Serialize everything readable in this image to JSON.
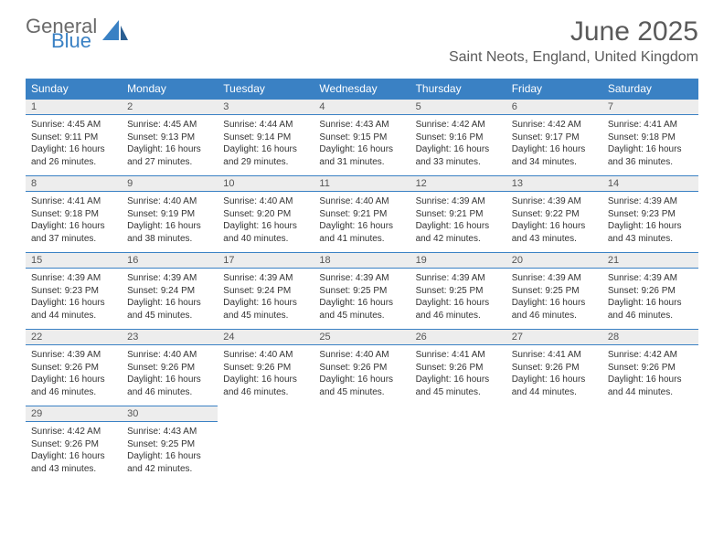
{
  "brand": {
    "word1": "General",
    "word2": "Blue"
  },
  "title": "June 2025",
  "location": "Saint Neots, England, United Kingdom",
  "colors": {
    "header_bg": "#3a81c4",
    "header_fg": "#ffffff",
    "daynum_bg": "#ededed",
    "rule": "#3a81c4",
    "text": "#333333"
  },
  "day_headers": [
    "Sunday",
    "Monday",
    "Tuesday",
    "Wednesday",
    "Thursday",
    "Friday",
    "Saturday"
  ],
  "weeks": [
    [
      {
        "n": "1",
        "sr": "Sunrise: 4:45 AM",
        "ss": "Sunset: 9:11 PM",
        "dl": "Daylight: 16 hours and 26 minutes."
      },
      {
        "n": "2",
        "sr": "Sunrise: 4:45 AM",
        "ss": "Sunset: 9:13 PM",
        "dl": "Daylight: 16 hours and 27 minutes."
      },
      {
        "n": "3",
        "sr": "Sunrise: 4:44 AM",
        "ss": "Sunset: 9:14 PM",
        "dl": "Daylight: 16 hours and 29 minutes."
      },
      {
        "n": "4",
        "sr": "Sunrise: 4:43 AM",
        "ss": "Sunset: 9:15 PM",
        "dl": "Daylight: 16 hours and 31 minutes."
      },
      {
        "n": "5",
        "sr": "Sunrise: 4:42 AM",
        "ss": "Sunset: 9:16 PM",
        "dl": "Daylight: 16 hours and 33 minutes."
      },
      {
        "n": "6",
        "sr": "Sunrise: 4:42 AM",
        "ss": "Sunset: 9:17 PM",
        "dl": "Daylight: 16 hours and 34 minutes."
      },
      {
        "n": "7",
        "sr": "Sunrise: 4:41 AM",
        "ss": "Sunset: 9:18 PM",
        "dl": "Daylight: 16 hours and 36 minutes."
      }
    ],
    [
      {
        "n": "8",
        "sr": "Sunrise: 4:41 AM",
        "ss": "Sunset: 9:18 PM",
        "dl": "Daylight: 16 hours and 37 minutes."
      },
      {
        "n": "9",
        "sr": "Sunrise: 4:40 AM",
        "ss": "Sunset: 9:19 PM",
        "dl": "Daylight: 16 hours and 38 minutes."
      },
      {
        "n": "10",
        "sr": "Sunrise: 4:40 AM",
        "ss": "Sunset: 9:20 PM",
        "dl": "Daylight: 16 hours and 40 minutes."
      },
      {
        "n": "11",
        "sr": "Sunrise: 4:40 AM",
        "ss": "Sunset: 9:21 PM",
        "dl": "Daylight: 16 hours and 41 minutes."
      },
      {
        "n": "12",
        "sr": "Sunrise: 4:39 AM",
        "ss": "Sunset: 9:21 PM",
        "dl": "Daylight: 16 hours and 42 minutes."
      },
      {
        "n": "13",
        "sr": "Sunrise: 4:39 AM",
        "ss": "Sunset: 9:22 PM",
        "dl": "Daylight: 16 hours and 43 minutes."
      },
      {
        "n": "14",
        "sr": "Sunrise: 4:39 AM",
        "ss": "Sunset: 9:23 PM",
        "dl": "Daylight: 16 hours and 43 minutes."
      }
    ],
    [
      {
        "n": "15",
        "sr": "Sunrise: 4:39 AM",
        "ss": "Sunset: 9:23 PM",
        "dl": "Daylight: 16 hours and 44 minutes."
      },
      {
        "n": "16",
        "sr": "Sunrise: 4:39 AM",
        "ss": "Sunset: 9:24 PM",
        "dl": "Daylight: 16 hours and 45 minutes."
      },
      {
        "n": "17",
        "sr": "Sunrise: 4:39 AM",
        "ss": "Sunset: 9:24 PM",
        "dl": "Daylight: 16 hours and 45 minutes."
      },
      {
        "n": "18",
        "sr": "Sunrise: 4:39 AM",
        "ss": "Sunset: 9:25 PM",
        "dl": "Daylight: 16 hours and 45 minutes."
      },
      {
        "n": "19",
        "sr": "Sunrise: 4:39 AM",
        "ss": "Sunset: 9:25 PM",
        "dl": "Daylight: 16 hours and 46 minutes."
      },
      {
        "n": "20",
        "sr": "Sunrise: 4:39 AM",
        "ss": "Sunset: 9:25 PM",
        "dl": "Daylight: 16 hours and 46 minutes."
      },
      {
        "n": "21",
        "sr": "Sunrise: 4:39 AM",
        "ss": "Sunset: 9:26 PM",
        "dl": "Daylight: 16 hours and 46 minutes."
      }
    ],
    [
      {
        "n": "22",
        "sr": "Sunrise: 4:39 AM",
        "ss": "Sunset: 9:26 PM",
        "dl": "Daylight: 16 hours and 46 minutes."
      },
      {
        "n": "23",
        "sr": "Sunrise: 4:40 AM",
        "ss": "Sunset: 9:26 PM",
        "dl": "Daylight: 16 hours and 46 minutes."
      },
      {
        "n": "24",
        "sr": "Sunrise: 4:40 AM",
        "ss": "Sunset: 9:26 PM",
        "dl": "Daylight: 16 hours and 46 minutes."
      },
      {
        "n": "25",
        "sr": "Sunrise: 4:40 AM",
        "ss": "Sunset: 9:26 PM",
        "dl": "Daylight: 16 hours and 45 minutes."
      },
      {
        "n": "26",
        "sr": "Sunrise: 4:41 AM",
        "ss": "Sunset: 9:26 PM",
        "dl": "Daylight: 16 hours and 45 minutes."
      },
      {
        "n": "27",
        "sr": "Sunrise: 4:41 AM",
        "ss": "Sunset: 9:26 PM",
        "dl": "Daylight: 16 hours and 44 minutes."
      },
      {
        "n": "28",
        "sr": "Sunrise: 4:42 AM",
        "ss": "Sunset: 9:26 PM",
        "dl": "Daylight: 16 hours and 44 minutes."
      }
    ],
    [
      {
        "n": "29",
        "sr": "Sunrise: 4:42 AM",
        "ss": "Sunset: 9:26 PM",
        "dl": "Daylight: 16 hours and 43 minutes."
      },
      {
        "n": "30",
        "sr": "Sunrise: 4:43 AM",
        "ss": "Sunset: 9:25 PM",
        "dl": "Daylight: 16 hours and 42 minutes."
      },
      null,
      null,
      null,
      null,
      null
    ]
  ]
}
